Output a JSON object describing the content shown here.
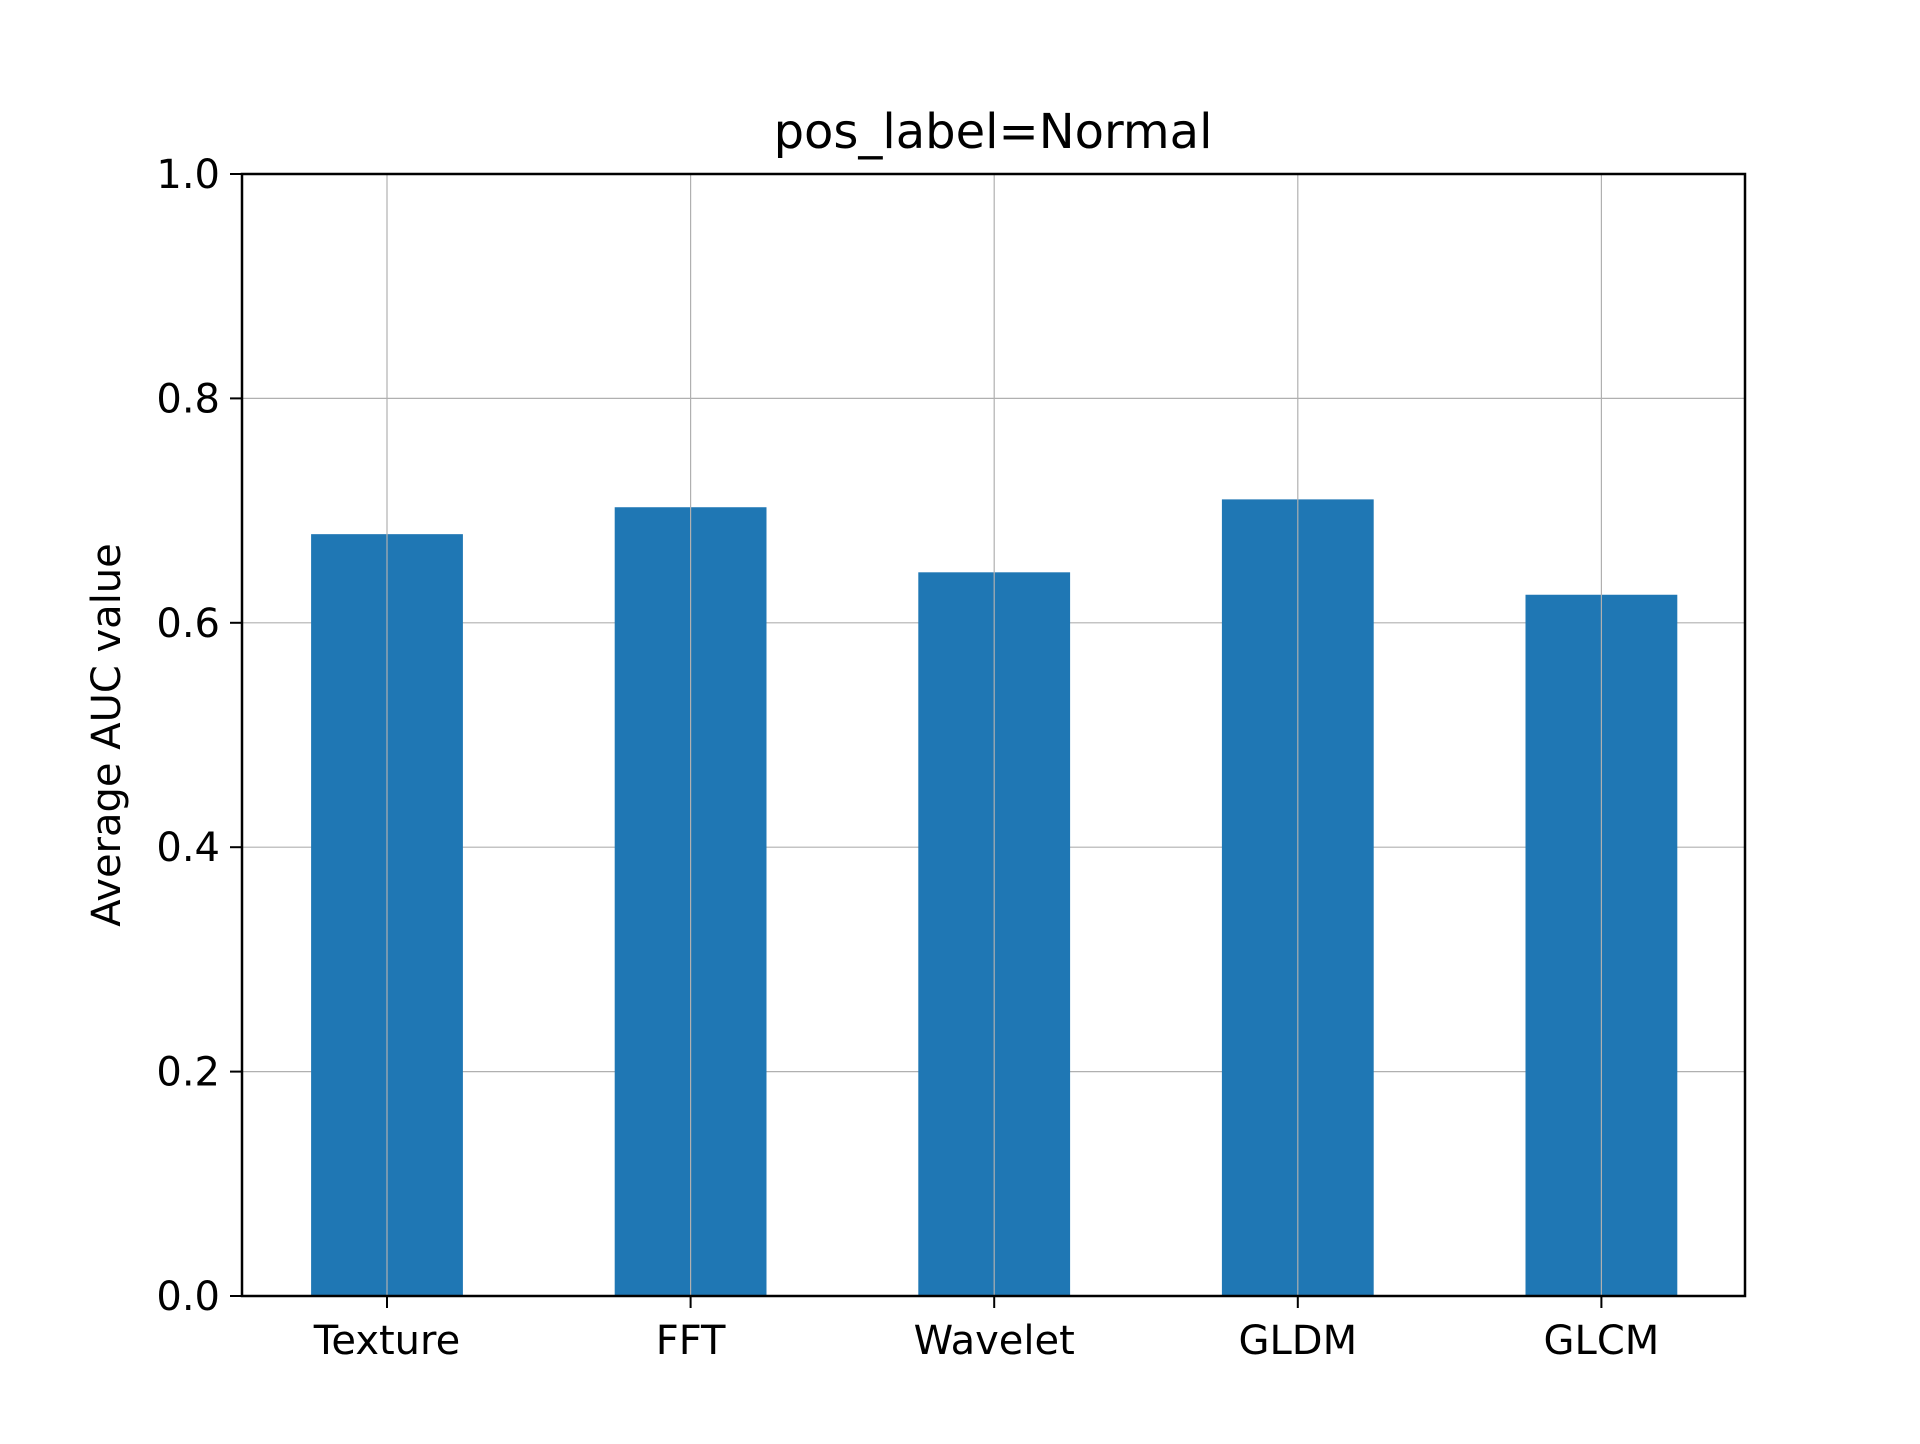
{
  "chart_data": {
    "type": "bar",
    "title": "pos_label=Normal",
    "xlabel": "",
    "ylabel": "Average AUC value",
    "categories": [
      "Texture",
      "FFT",
      "Wavelet",
      "GLDM",
      "GLCM"
    ],
    "values": [
      0.679,
      0.703,
      0.645,
      0.71,
      0.625
    ],
    "ylim": [
      0,
      1.0
    ],
    "yticks": [
      "0.0",
      "0.2",
      "0.4",
      "0.6",
      "0.8",
      "1.0"
    ],
    "grid": true,
    "legend": "none",
    "colors": {
      "bar": "#1f77b4",
      "grid": "#b0b0b0",
      "axis": "#000000"
    }
  }
}
